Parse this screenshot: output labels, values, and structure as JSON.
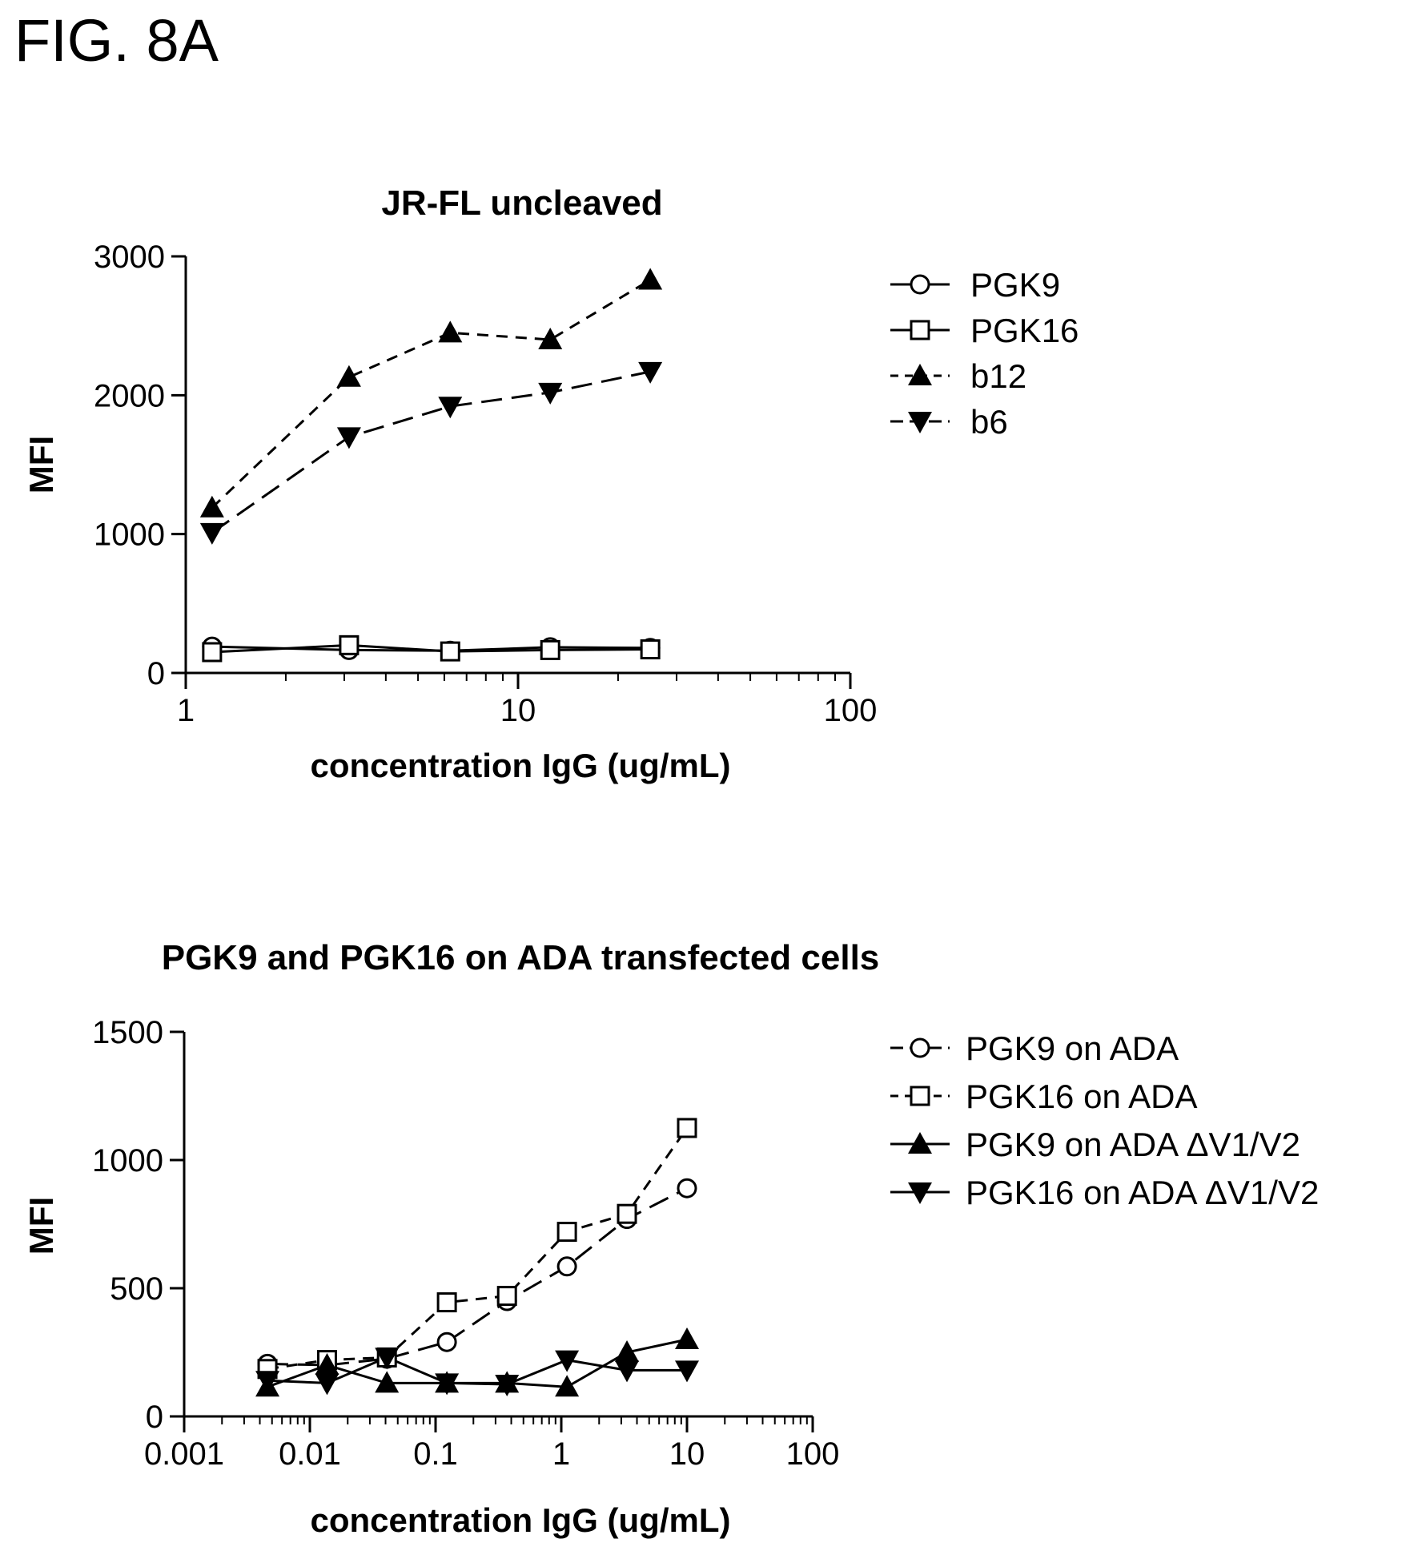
{
  "figure_label": "FIG. 8A",
  "chart_data": [
    {
      "type": "line",
      "title": "JR-FL uncleaved",
      "xlabel": "concentration IgG (ug/mL)",
      "ylabel": "MFI",
      "xscale": "log",
      "xlim": [
        1,
        100
      ],
      "ylim": [
        0,
        3000
      ],
      "xticks": [
        "1",
        "10",
        "100"
      ],
      "yticks": [
        "0",
        "1000",
        "2000",
        "3000"
      ],
      "x": [
        1.2,
        3.1,
        6.25,
        12.5,
        25
      ],
      "legend_position": "right",
      "series": [
        {
          "name": "PGK9",
          "marker": "open-circle",
          "line": "solid",
          "values": [
            190,
            165,
            160,
            185,
            180
          ]
        },
        {
          "name": "PGK16",
          "marker": "open-square",
          "line": "solid",
          "values": [
            150,
            200,
            155,
            165,
            170
          ]
        },
        {
          "name": "b12",
          "marker": "filled-triangle-up",
          "line": "dashed",
          "values": [
            1190,
            2130,
            2450,
            2400,
            2830
          ]
        },
        {
          "name": "b6",
          "marker": "filled-triangle-down",
          "line": "long-dashed",
          "values": [
            1010,
            1700,
            1920,
            2020,
            2170
          ]
        }
      ]
    },
    {
      "type": "line",
      "title": "PGK9 and PGK16 on ADA transfected cells",
      "xlabel": "concentration IgG (ug/mL)",
      "ylabel": "MFI",
      "xscale": "log",
      "xlim": [
        0.001,
        100
      ],
      "ylim": [
        0,
        1500
      ],
      "xticks": [
        "0.001",
        "0.01",
        "0.1",
        "1",
        "10",
        "100"
      ],
      "yticks": [
        "0",
        "500",
        "1000",
        "1500"
      ],
      "x": [
        0.0046,
        0.0137,
        0.041,
        0.123,
        0.37,
        1.11,
        3.33,
        10
      ],
      "legend_position": "right",
      "series": [
        {
          "name": "PGK9 on ADA",
          "marker": "open-circle",
          "line": "long-dashed",
          "values": [
            205,
            200,
            225,
            290,
            450,
            585,
            770,
            890
          ]
        },
        {
          "name": "PGK16 on ADA",
          "marker": "open-square",
          "line": "dashed",
          "values": [
            185,
            220,
            230,
            445,
            470,
            720,
            790,
            1125
          ]
        },
        {
          "name": "PGK9 on ADA ΔV1/V2",
          "marker": "filled-triangle-up",
          "line": "solid",
          "values": [
            115,
            200,
            130,
            130,
            130,
            115,
            250,
            300
          ]
        },
        {
          "name": "PGK16 on ADA ΔV1/V2",
          "marker": "filled-triangle-down",
          "line": "solid",
          "values": [
            140,
            130,
            230,
            130,
            125,
            220,
            180,
            180
          ]
        }
      ]
    }
  ]
}
